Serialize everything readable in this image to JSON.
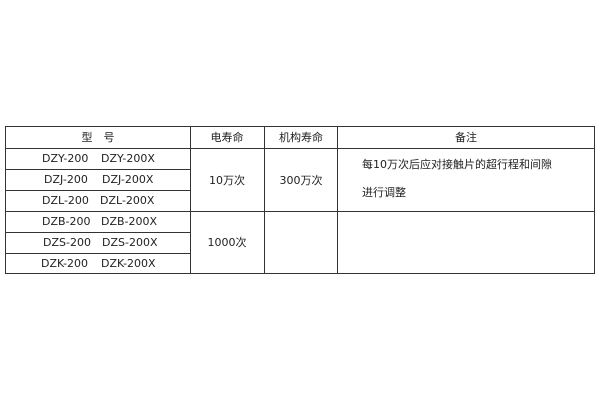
{
  "header": {
    "model": "型　号",
    "electrical_life": "电寿命",
    "mechanical_life": "机构寿命",
    "remarks": "备注"
  },
  "rows": [
    {
      "model_a": "DZY-200",
      "model_b": "DZY-200X"
    },
    {
      "model_a": "DZJ-200",
      "model_b": "DZJ-200X"
    },
    {
      "model_a": "DZL-200",
      "model_b": "DZL-200X"
    },
    {
      "model_a": "DZB-200",
      "model_b": "DZB-200X"
    },
    {
      "model_a": "DZS-200",
      "model_b": "DZS-200X"
    },
    {
      "model_a": "DZK-200",
      "model_b": "DZK-200X"
    }
  ],
  "groups": [
    {
      "electrical_life": "10万次",
      "mechanical_life": "300万次",
      "remarks_line1": "每10万次后应对接触片的超行程和间隙",
      "remarks_line2": "进行调整"
    },
    {
      "electrical_life": "1000次",
      "mechanical_life": "",
      "remarks_line1": "",
      "remarks_line2": ""
    }
  ]
}
